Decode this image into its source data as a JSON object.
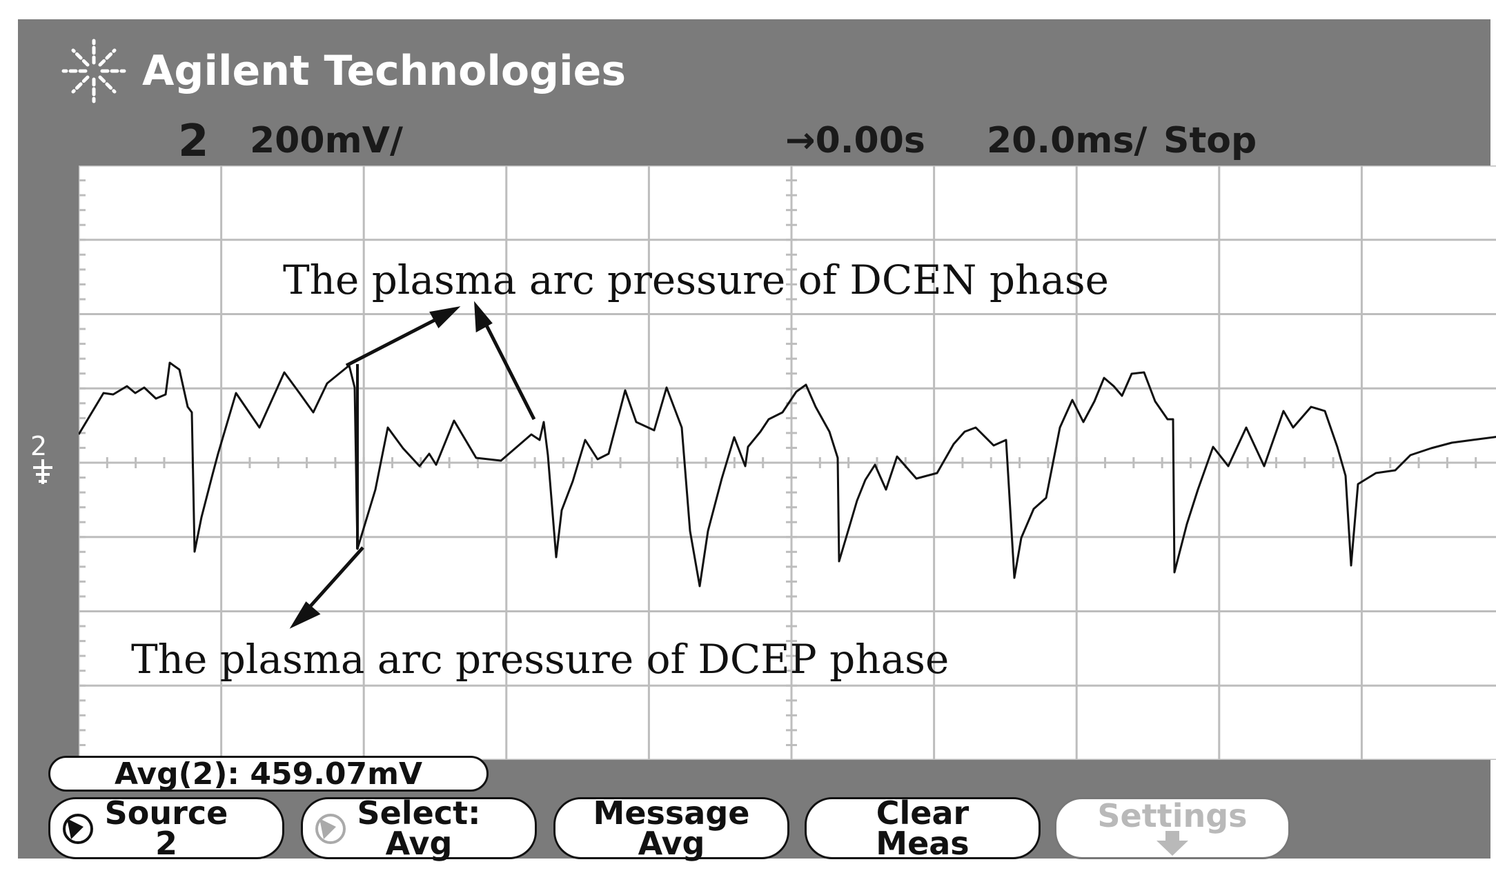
{
  "brand": {
    "name": "Agilent Technologies",
    "logo_icon": "agilent-spark-icon"
  },
  "status": {
    "channel": "2",
    "volts_div": "200mV/",
    "delay": "→0.00s",
    "time_div": "20.0ms/",
    "run_state": "Stop"
  },
  "screen": {
    "channel_marker": "2",
    "ground_icon": "ground-marker-icon"
  },
  "annotations": {
    "dcen": "The plasma arc pressure of DCEN phase",
    "dcep": "The plasma arc pressure of DCEP phase"
  },
  "measurement": {
    "avg_readout": "Avg(2):  459.07mV"
  },
  "softkeys": [
    {
      "line1": "Source",
      "line2": "2",
      "icon": "knob-icon"
    },
    {
      "line1": "Select:",
      "line2": "Avg",
      "icon": "knob-icon"
    },
    {
      "line1": "Message",
      "line2": "Avg"
    },
    {
      "line1": "Clear",
      "line2": "Meas"
    },
    {
      "line1": "Settings",
      "icon": "arrow-down-icon"
    }
  ],
  "colors": {
    "bezel": "#7b7b7b",
    "screen": "#ffffff",
    "grid": "#bdbdbd",
    "trace": "#111111",
    "disabled_text": "#b9b9b9"
  }
}
